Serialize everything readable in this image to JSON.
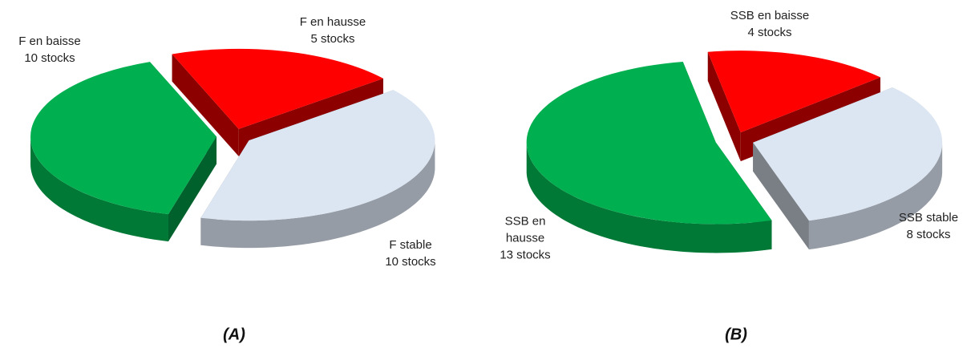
{
  "chart_data": [
    {
      "type": "pie",
      "caption": "(A)",
      "categories": [
        "F en baisse",
        "F en hausse",
        "F stable"
      ],
      "values": [
        10,
        5,
        10
      ],
      "value_labels": [
        "10 stocks",
        "5 stocks",
        "10 stocks"
      ],
      "colors": [
        "#00b050",
        "#ff0000",
        "#dce6f2"
      ]
    },
    {
      "type": "pie",
      "caption": "(B)",
      "categories": [
        "SSB en baisse",
        "SSB stable",
        "SSB en hausse"
      ],
      "values": [
        4,
        8,
        13
      ],
      "value_labels": [
        "4 stocks",
        "8 stocks",
        "13 stocks"
      ],
      "colors": [
        "#ff0000",
        "#dce6f2",
        "#00b050"
      ]
    }
  ]
}
